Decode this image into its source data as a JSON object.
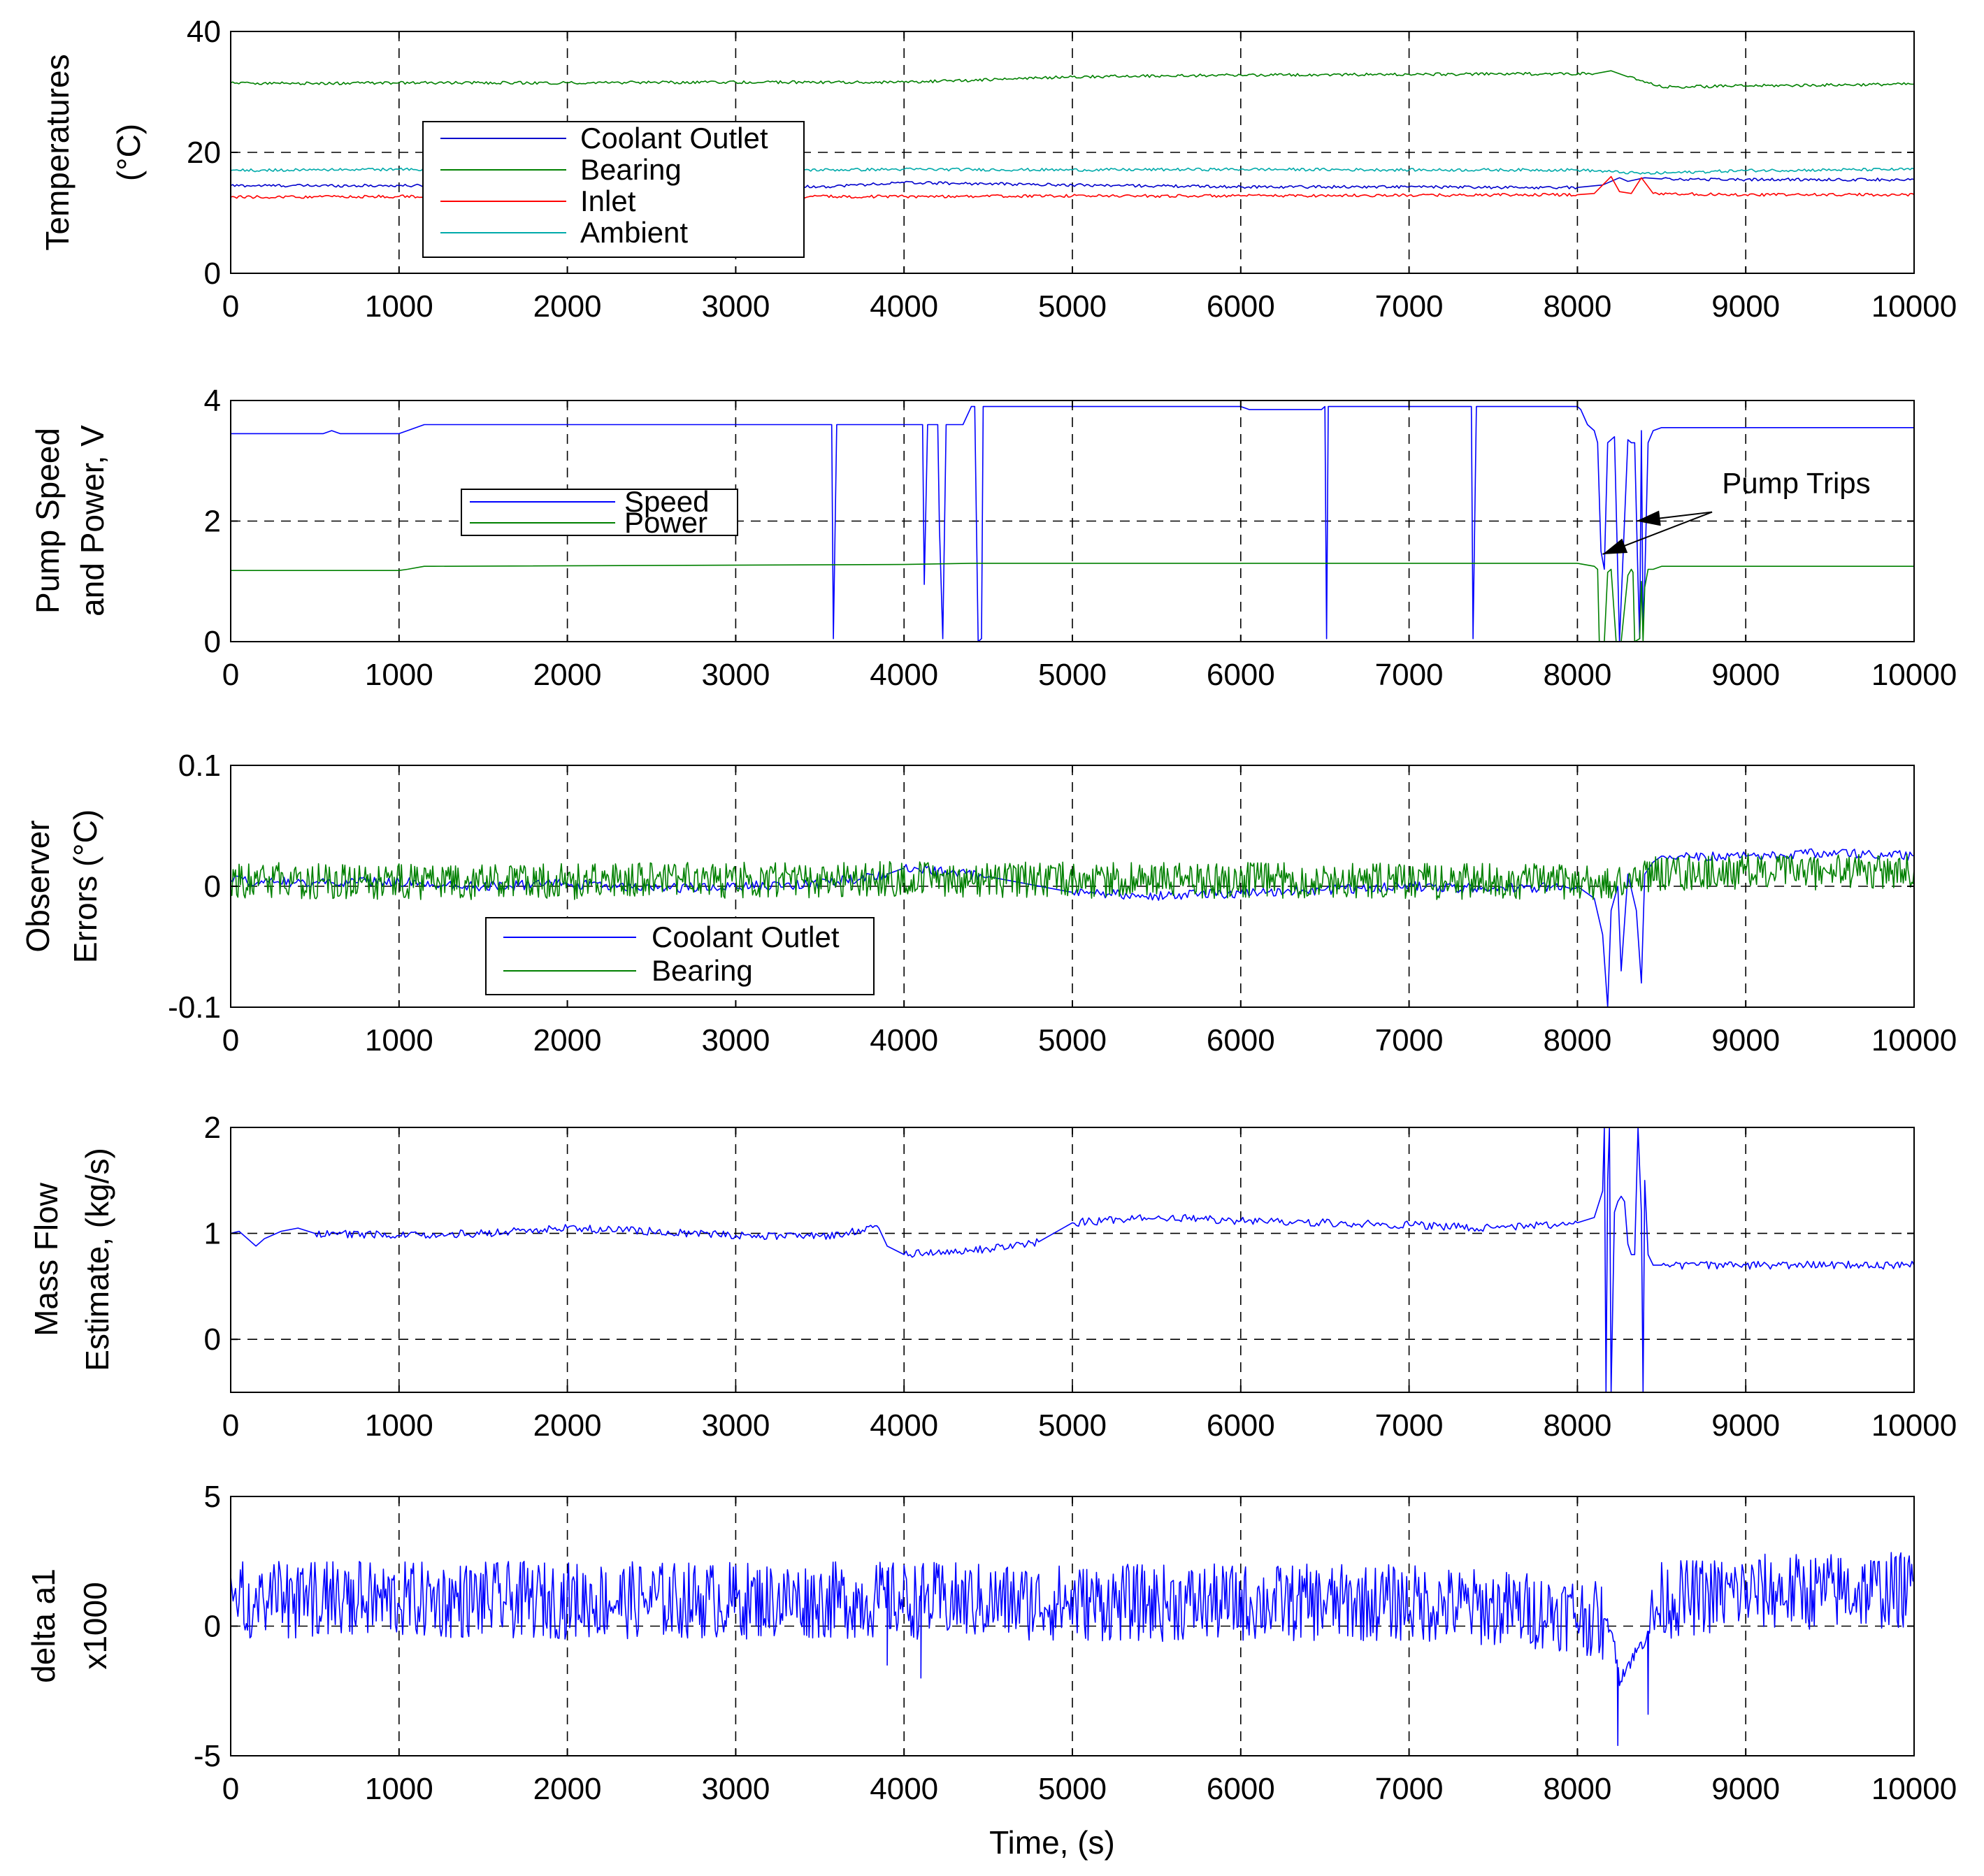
{
  "chart_data": [
    {
      "type": "line",
      "ylabel_lines": [
        "Temperatures",
        "(°C)"
      ],
      "xlabel": "",
      "xlim": [
        0,
        10000
      ],
      "ylim": [
        0,
        40
      ],
      "xticks": [
        0,
        1000,
        2000,
        3000,
        4000,
        5000,
        6000,
        7000,
        8000,
        9000,
        10000
      ],
      "yticks": [
        0,
        20,
        40
      ],
      "grid": true,
      "legend_position": "left",
      "series": [
        {
          "name": "Coolant Outlet",
          "color": "#0000cc",
          "x": [
            0,
            1000,
            2000,
            3000,
            3500,
            4000,
            4500,
            5000,
            6000,
            7000,
            7500,
            8000,
            8150,
            8250,
            8300,
            8400,
            8500,
            9000,
            10000
          ],
          "y": [
            14.5,
            14.5,
            14.4,
            14.5,
            14.3,
            15.0,
            14.8,
            14.6,
            14.3,
            14.3,
            14.2,
            14.2,
            14.6,
            15.8,
            15.2,
            15.8,
            15.6,
            15.5,
            15.5
          ]
        },
        {
          "name": "Bearing",
          "color": "#008000",
          "x": [
            0,
            500,
            1000,
            2000,
            3000,
            4000,
            4500,
            5000,
            6000,
            7000,
            7800,
            8100,
            8200,
            8300,
            8500,
            9000,
            10000
          ],
          "y": [
            31.5,
            31.4,
            31.5,
            31.5,
            31.6,
            31.6,
            32.0,
            32.5,
            32.8,
            32.9,
            33.0,
            33.0,
            33.5,
            32.5,
            30.8,
            31.0,
            31.3
          ]
        },
        {
          "name": "Inlet",
          "color": "#ff0000",
          "x": [
            0,
            1000,
            2000,
            3000,
            4000,
            5000,
            6000,
            7000,
            8000,
            8100,
            8200,
            8250,
            8320,
            8380,
            8450,
            9000,
            10000
          ],
          "y": [
            12.6,
            12.7,
            12.7,
            12.7,
            12.7,
            12.8,
            12.8,
            12.9,
            13.0,
            13.2,
            16.0,
            13.5,
            13.2,
            15.8,
            13.2,
            13.0,
            13.0
          ]
        },
        {
          "name": "Ambient",
          "color": "#00aaaa",
          "x": [
            0,
            1000,
            2000,
            3000,
            4000,
            5000,
            6000,
            7000,
            8000,
            8200,
            8400,
            9000,
            10000
          ],
          "y": [
            17.0,
            17.2,
            17.0,
            17.0,
            17.2,
            17.1,
            17.2,
            17.1,
            17.1,
            16.8,
            16.5,
            17.0,
            17.2
          ]
        }
      ]
    },
    {
      "type": "line",
      "ylabel_lines": [
        "Pump Speed",
        "and Power, V"
      ],
      "xlabel": "",
      "xlim": [
        0,
        10000
      ],
      "ylim": [
        0,
        4
      ],
      "xticks": [
        0,
        1000,
        2000,
        3000,
        4000,
        5000,
        6000,
        7000,
        8000,
        9000,
        10000
      ],
      "yticks": [
        0,
        2,
        4
      ],
      "grid": true,
      "legend_position": "left",
      "annotation": {
        "text": "Pump Trips",
        "text_at": [
          9300,
          2.65
        ],
        "arrow_tails": [
          [
            8800,
            2.15
          ],
          [
            8800,
            2.15
          ]
        ],
        "arrow_heads": [
          [
            8150,
            1.45
          ],
          [
            8350,
            2.0
          ]
        ]
      },
      "series": [
        {
          "name": "Speed",
          "color": "#0000ff",
          "x": [
            0,
            550,
            600,
            650,
            1000,
            1050,
            1150,
            1200,
            3550,
            3570,
            3580,
            3600,
            4100,
            4110,
            4120,
            4140,
            4200,
            4210,
            4230,
            4250,
            4350,
            4400,
            4420,
            4440,
            4460,
            4470,
            4480,
            6000,
            6050,
            6480,
            6500,
            6510,
            6520,
            6550,
            7350,
            7370,
            7380,
            7400,
            8000,
            8020,
            8060,
            8100,
            8120,
            8140,
            8160,
            8180,
            8220,
            8250,
            8300,
            8320,
            8340,
            8360,
            8370,
            8380,
            8390,
            8400,
            8420,
            8450,
            8500,
            10000
          ],
          "y": [
            3.45,
            3.45,
            3.5,
            3.45,
            3.45,
            3.5,
            3.6,
            3.6,
            3.6,
            3.6,
            0.05,
            3.6,
            3.6,
            3.6,
            0.95,
            3.6,
            3.6,
            1.9,
            0.05,
            3.6,
            3.6,
            3.9,
            3.9,
            0.0,
            0.05,
            3.9,
            3.9,
            3.9,
            3.85,
            3.85,
            3.9,
            0.05,
            3.9,
            3.9,
            3.9,
            3.9,
            0.05,
            3.9,
            3.9,
            3.85,
            3.6,
            3.5,
            3.3,
            1.5,
            1.2,
            3.3,
            3.4,
            0.0,
            3.35,
            3.3,
            3.3,
            1.0,
            0.05,
            3.5,
            0.2,
            1.0,
            3.3,
            3.5,
            3.55,
            3.55
          ]
        },
        {
          "name": "Power",
          "color": "#008000",
          "x": [
            0,
            1000,
            1050,
            1150,
            1200,
            4000,
            4400,
            8000,
            8100,
            8120,
            8130,
            8160,
            8180,
            8200,
            8230,
            8260,
            8300,
            8320,
            8330,
            8340,
            8370,
            8380,
            8390,
            8400,
            8420,
            8450,
            8500,
            10000
          ],
          "y": [
            1.18,
            1.18,
            1.2,
            1.25,
            1.25,
            1.28,
            1.3,
            1.3,
            1.25,
            1.2,
            0.0,
            0.0,
            1.15,
            1.2,
            0.0,
            0.0,
            1.1,
            1.2,
            1.15,
            0.0,
            0.05,
            1.0,
            0.0,
            0.9,
            1.2,
            1.2,
            1.25,
            1.25
          ]
        }
      ]
    },
    {
      "type": "line",
      "ylabel_lines": [
        "Observer",
        "Errors (°C)"
      ],
      "xlabel": "",
      "xlim": [
        0,
        10000
      ],
      "ylim": [
        -0.1,
        0.1
      ],
      "xticks": [
        0,
        1000,
        2000,
        3000,
        4000,
        5000,
        6000,
        7000,
        8000,
        9000,
        10000
      ],
      "yticks": [
        -0.1,
        0,
        0.1
      ],
      "grid": true,
      "legend_position": "bottom-left",
      "series": [
        {
          "name": "Coolant Outlet",
          "color": "#0000ff",
          "x": [
            0,
            500,
            1000,
            1500,
            2000,
            2500,
            3000,
            3500,
            3900,
            4000,
            4500,
            5000,
            5500,
            6000,
            6500,
            7000,
            7500,
            8000,
            8100,
            8150,
            8180,
            8200,
            8240,
            8260,
            8300,
            8350,
            8380,
            8400,
            8450,
            8500,
            9000,
            9500,
            10000
          ],
          "y": [
            0.005,
            0.003,
            0.004,
            0.0,
            0.002,
            -0.002,
            0.0,
            0.002,
            0.01,
            0.015,
            0.008,
            -0.005,
            -0.008,
            -0.006,
            -0.003,
            0.0,
            -0.002,
            0.0,
            -0.01,
            -0.04,
            -0.1,
            -0.02,
            0.0,
            -0.07,
            0.01,
            -0.02,
            -0.08,
            0.01,
            0.02,
            0.025,
            0.025,
            0.028,
            0.025
          ]
        },
        {
          "name": "Bearing",
          "color": "#008000",
          "x": [
            0,
            1000,
            2000,
            3000,
            4000,
            5000,
            6000,
            7000,
            8000,
            8200,
            8400,
            9000,
            10000
          ],
          "y": [
            0.005,
            0.004,
            0.004,
            0.005,
            0.006,
            0.005,
            0.005,
            0.004,
            0.004,
            0.0,
            0.01,
            0.012,
            0.012
          ],
          "noise_amplitude": 0.015
        }
      ]
    },
    {
      "type": "line",
      "ylabel_lines": [
        "Mass Flow",
        "Estimate, (kg/s)"
      ],
      "xlabel": "",
      "xlim": [
        0,
        10000
      ],
      "ylim": [
        -0.5,
        2
      ],
      "xticks": [
        0,
        1000,
        2000,
        3000,
        4000,
        5000,
        6000,
        7000,
        8000,
        9000,
        10000
      ],
      "yticks": [
        0,
        1,
        2
      ],
      "grid": true,
      "series": [
        {
          "name": "Mass Flow Estimate",
          "color": "#0000ff",
          "x": [
            0,
            50,
            100,
            150,
            200,
            300,
            400,
            500,
            1000,
            1500,
            2000,
            2500,
            3000,
            3500,
            3850,
            3900,
            4000,
            4500,
            4800,
            5000,
            5500,
            6000,
            6500,
            7000,
            7500,
            8000,
            8100,
            8150,
            8160,
            8170,
            8180,
            8190,
            8200,
            8220,
            8240,
            8260,
            8280,
            8300,
            8320,
            8340,
            8360,
            8380,
            8390,
            8400,
            8420,
            8450,
            8500,
            9000,
            9500,
            10000
          ],
          "y": [
            1.0,
            1.02,
            0.95,
            0.88,
            0.95,
            1.02,
            1.05,
            1.0,
            0.98,
            1.0,
            1.05,
            1.02,
            0.98,
            0.97,
            1.05,
            0.88,
            0.8,
            0.85,
            0.92,
            1.1,
            1.15,
            1.12,
            1.1,
            1.08,
            1.05,
            1.1,
            1.15,
            1.4,
            2.0,
            -0.5,
            1.5,
            2.0,
            -0.5,
            1.2,
            1.3,
            1.35,
            1.3,
            0.9,
            0.8,
            0.8,
            2.0,
            1.2,
            -0.5,
            1.5,
            0.8,
            0.7,
            0.7,
            0.7,
            0.7,
            0.7
          ]
        }
      ]
    },
    {
      "type": "line",
      "ylabel_lines": [
        "delta a1",
        "x1000"
      ],
      "xlabel": "Time, (s)",
      "xlim": [
        0,
        10000
      ],
      "ylim": [
        -5,
        5
      ],
      "xticks": [
        0,
        1000,
        2000,
        3000,
        4000,
        5000,
        6000,
        7000,
        8000,
        9000,
        10000
      ],
      "yticks": [
        -5,
        0,
        5
      ],
      "grid": true,
      "series": [
        {
          "name": "delta a1",
          "color": "#0000ff",
          "x": [
            0,
            1000,
            2000,
            3000,
            4000,
            5000,
            6000,
            7000,
            8000,
            8200,
            8250,
            8400,
            8500,
            9000,
            10000
          ],
          "y": [
            1.0,
            1.0,
            1.0,
            1.0,
            1.0,
            0.9,
            0.9,
            0.9,
            0.5,
            0.0,
            -2.0,
            -0.5,
            1.0,
            1.3,
            1.4
          ],
          "noise_amplitude": 1.5,
          "dips": [
            {
              "x": 8240,
              "y": -4.6
            },
            {
              "x": 8420,
              "y": -3.4
            },
            {
              "x": 4100,
              "y": -2.0
            },
            {
              "x": 3900,
              "y": -1.5
            }
          ]
        }
      ]
    }
  ]
}
